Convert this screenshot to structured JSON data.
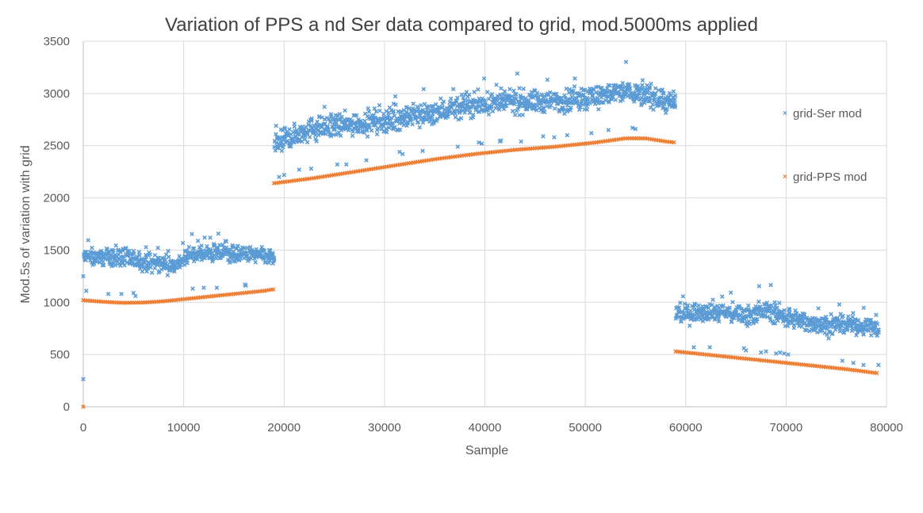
{
  "chart_data": {
    "type": "scatter",
    "title": "Variation of PPS a nd Ser data compared to grid, mod.5000ms applied",
    "xlabel": "Sample",
    "ylabel": "Mod.5s of variation with grid",
    "xlim": [
      0,
      80000
    ],
    "ylim": [
      0,
      3500
    ],
    "xticks": [
      0,
      10000,
      20000,
      30000,
      40000,
      50000,
      60000,
      70000,
      80000
    ],
    "yticks": [
      0,
      500,
      1000,
      1500,
      2000,
      2500,
      3000,
      3500
    ],
    "grid": true,
    "legend_position": "right",
    "series": [
      {
        "name": "grid-Ser mod",
        "color": "#5b9bd5",
        "marker": "x",
        "segments": [
          {
            "x_range": [
              0,
              19000
            ],
            "trend": [
              [
                0,
                1430
              ],
              [
                3000,
                1440
              ],
              [
                6000,
                1380
              ],
              [
                9000,
                1360
              ],
              [
                11000,
                1460
              ],
              [
                14000,
                1470
              ],
              [
                17000,
                1450
              ],
              [
                19000,
                1430
              ]
            ],
            "spread": 80
          },
          {
            "x_range": [
              19000,
              59000
            ],
            "trend": [
              [
                19000,
                2500
              ],
              [
                22000,
                2650
              ],
              [
                26000,
                2700
              ],
              [
                30000,
                2740
              ],
              [
                34000,
                2800
              ],
              [
                38000,
                2880
              ],
              [
                42000,
                2920
              ],
              [
                46000,
                2920
              ],
              [
                50000,
                2960
              ],
              [
                54000,
                3020
              ],
              [
                57000,
                2960
              ],
              [
                59000,
                2880
              ]
            ],
            "spread": 110
          },
          {
            "x_range": [
              59000,
              79200
            ],
            "trend": [
              [
                59000,
                880
              ],
              [
                62000,
                920
              ],
              [
                66000,
                880
              ],
              [
                68000,
                920
              ],
              [
                71000,
                830
              ],
              [
                74000,
                780
              ],
              [
                77000,
                790
              ],
              [
                79200,
                750
              ]
            ],
            "spread": 90
          }
        ],
        "outliers": [
          [
            0,
            265
          ],
          [
            0,
            1250
          ],
          [
            300,
            1110
          ],
          [
            2500,
            1080
          ],
          [
            3800,
            1080
          ],
          [
            5000,
            1090
          ],
          [
            5200,
            1060
          ],
          [
            10900,
            1130
          ],
          [
            12000,
            1140
          ],
          [
            13300,
            1140
          ],
          [
            16100,
            1170
          ],
          [
            16200,
            1160
          ],
          [
            19500,
            2200
          ],
          [
            20000,
            2220
          ],
          [
            21500,
            2270
          ],
          [
            22700,
            2280
          ],
          [
            25300,
            2320
          ],
          [
            26200,
            2320
          ],
          [
            28200,
            2360
          ],
          [
            31500,
            2440
          ],
          [
            31800,
            2420
          ],
          [
            33800,
            2450
          ],
          [
            37300,
            2490
          ],
          [
            39400,
            2530
          ],
          [
            39700,
            2520
          ],
          [
            41500,
            2540
          ],
          [
            41600,
            2550
          ],
          [
            43600,
            2540
          ],
          [
            45800,
            2590
          ],
          [
            46900,
            2580
          ],
          [
            48200,
            2600
          ],
          [
            50600,
            2620
          ],
          [
            52300,
            2650
          ],
          [
            54700,
            2670
          ],
          [
            55000,
            2660
          ],
          [
            60800,
            570
          ],
          [
            62400,
            570
          ],
          [
            65800,
            560
          ],
          [
            66000,
            540
          ],
          [
            67500,
            520
          ],
          [
            68000,
            530
          ],
          [
            69000,
            510
          ],
          [
            69400,
            520
          ],
          [
            69800,
            510
          ],
          [
            70200,
            500
          ],
          [
            75600,
            440
          ],
          [
            76700,
            420
          ],
          [
            77700,
            400
          ],
          [
            79200,
            400
          ]
        ]
      },
      {
        "name": "grid-PPS mod",
        "color": "#ed7d31",
        "marker": "x",
        "segments": [
          {
            "x_range": [
              0,
              19000
            ],
            "trend": [
              [
                0,
                1020
              ],
              [
                2000,
                1005
              ],
              [
                4000,
                995
              ],
              [
                6000,
                998
              ],
              [
                8000,
                1010
              ],
              [
                10000,
                1030
              ],
              [
                12000,
                1050
              ],
              [
                14000,
                1070
              ],
              [
                16000,
                1090
              ],
              [
                18000,
                1110
              ],
              [
                19000,
                1125
              ]
            ]
          },
          {
            "x_range": [
              19000,
              59000
            ],
            "trend": [
              [
                19000,
                2140
              ],
              [
                23000,
                2190
              ],
              [
                27000,
                2250
              ],
              [
                31000,
                2310
              ],
              [
                35000,
                2370
              ],
              [
                39000,
                2420
              ],
              [
                43000,
                2460
              ],
              [
                47000,
                2490
              ],
              [
                51000,
                2530
              ],
              [
                54000,
                2570
              ],
              [
                56000,
                2570
              ],
              [
                58000,
                2540
              ],
              [
                59000,
                2530
              ]
            ]
          },
          {
            "x_range": [
              59000,
              79200
            ],
            "trend": [
              [
                59000,
                530
              ],
              [
                61000,
                510
              ],
              [
                64000,
                480
              ],
              [
                67000,
                450
              ],
              [
                70000,
                420
              ],
              [
                73000,
                390
              ],
              [
                76000,
                360
              ],
              [
                79200,
                320
              ]
            ]
          }
        ],
        "outliers": [
          [
            0,
            0
          ]
        ]
      }
    ]
  }
}
